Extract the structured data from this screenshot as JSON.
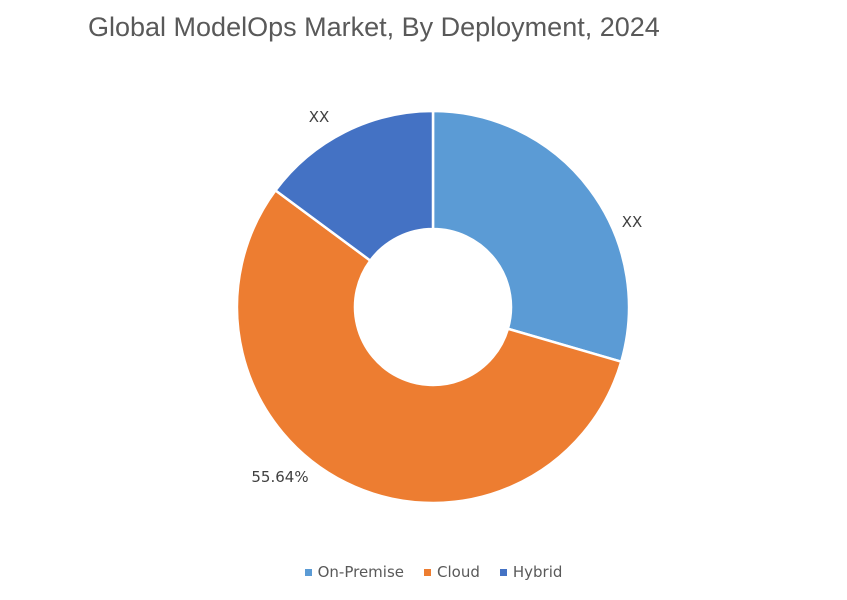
{
  "chart_data": {
    "type": "pie",
    "subtype": "donut",
    "title": "Global ModelOps Market, By Deployment, 2024",
    "categories": [
      "On-Premise",
      "Cloud",
      "Hybrid"
    ],
    "values": [
      29.5,
      55.64,
      14.86
    ],
    "data_labels": [
      "XX",
      "55.64%",
      "XX"
    ],
    "colors": [
      "#5B9BD5",
      "#ED7D31",
      "#4472C4"
    ],
    "legend_position": "bottom"
  }
}
